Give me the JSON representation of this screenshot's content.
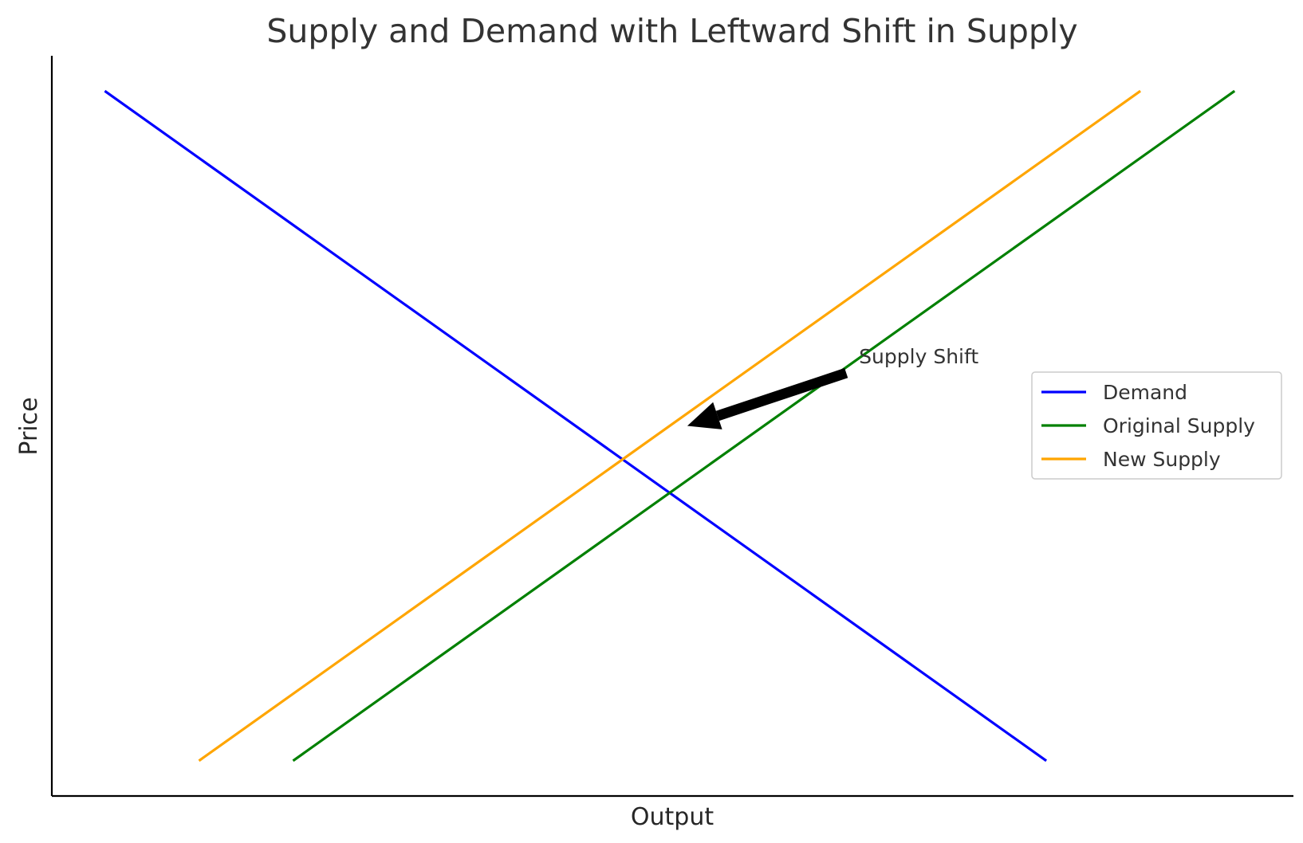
{
  "chart_data": {
    "type": "line",
    "title": "Supply and Demand with Leftward Shift in Supply",
    "xlabel": "Output",
    "ylabel": "Price",
    "xlim": [
      0,
      10.55
    ],
    "ylim": [
      0,
      10.5
    ],
    "grid": false,
    "legend_position": "center-right",
    "series": [
      {
        "name": "Demand",
        "color": "#0000ff",
        "x": [
          0.45,
          8.45
        ],
        "y": [
          10.0,
          0.5
        ]
      },
      {
        "name": "Original Supply",
        "color": "#008000",
        "x": [
          2.05,
          10.05
        ],
        "y": [
          0.5,
          10.0
        ]
      },
      {
        "name": "New Supply",
        "color": "#ffa500",
        "x": [
          1.25,
          9.25
        ],
        "y": [
          0.5,
          10.0
        ]
      }
    ],
    "annotations": [
      {
        "text": "Supply Shift",
        "from": [
          6.75,
          6.0
        ],
        "to": [
          5.4,
          5.25
        ]
      }
    ]
  }
}
